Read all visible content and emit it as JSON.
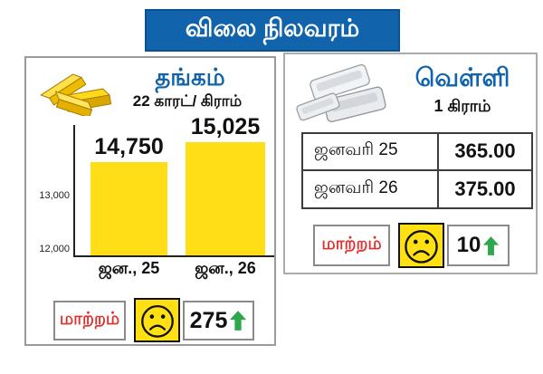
{
  "title": "விலை நிலவரம்",
  "colors": {
    "banner_blue": "#1164ab",
    "bar_yellow": "#ffdd17",
    "smiley_yellow": "#ffe012",
    "arrow_green": "#2ea84c",
    "change_red": "#e0312e"
  },
  "gold_panel": {
    "name": "தங்கம்",
    "unit": "22 காரட்/ கிராம்",
    "icon": "gold-bars-icon",
    "change_label": "மாற்றம்",
    "change_value": "275",
    "mood_icon": "sad-face",
    "direction_icon": "up-arrow"
  },
  "silver_panel": {
    "name": "வெள்ளி",
    "unit": "1 கிராம்",
    "icon": "silver-bars-icon",
    "change_label": "மாற்றம்",
    "change_value": "10",
    "mood_icon": "sad-face",
    "direction_icon": "up-arrow"
  },
  "chart_data": [
    {
      "type": "bar",
      "title": "தங்கம் 22 காரட்/ கிராம்",
      "categories": [
        "ஜன., 25",
        "ஜன., 26"
      ],
      "values": [
        14750,
        15025
      ],
      "bar_labels": [
        "14,750",
        "15,025"
      ],
      "yticks": [
        13000,
        12000
      ],
      "ytick_labels": [
        "13,000",
        "12,000"
      ],
      "ylim": [
        11900,
        15300
      ],
      "bar_color": "#ffdd17",
      "grid": false,
      "legend": false
    },
    {
      "type": "table",
      "title": "வெள்ளி 1 கிராம்",
      "columns": [
        "date",
        "price"
      ],
      "rows": [
        [
          "ஜனவரி 25",
          "365.00"
        ],
        [
          "ஜனவரி 26",
          "375.00"
        ]
      ]
    }
  ]
}
